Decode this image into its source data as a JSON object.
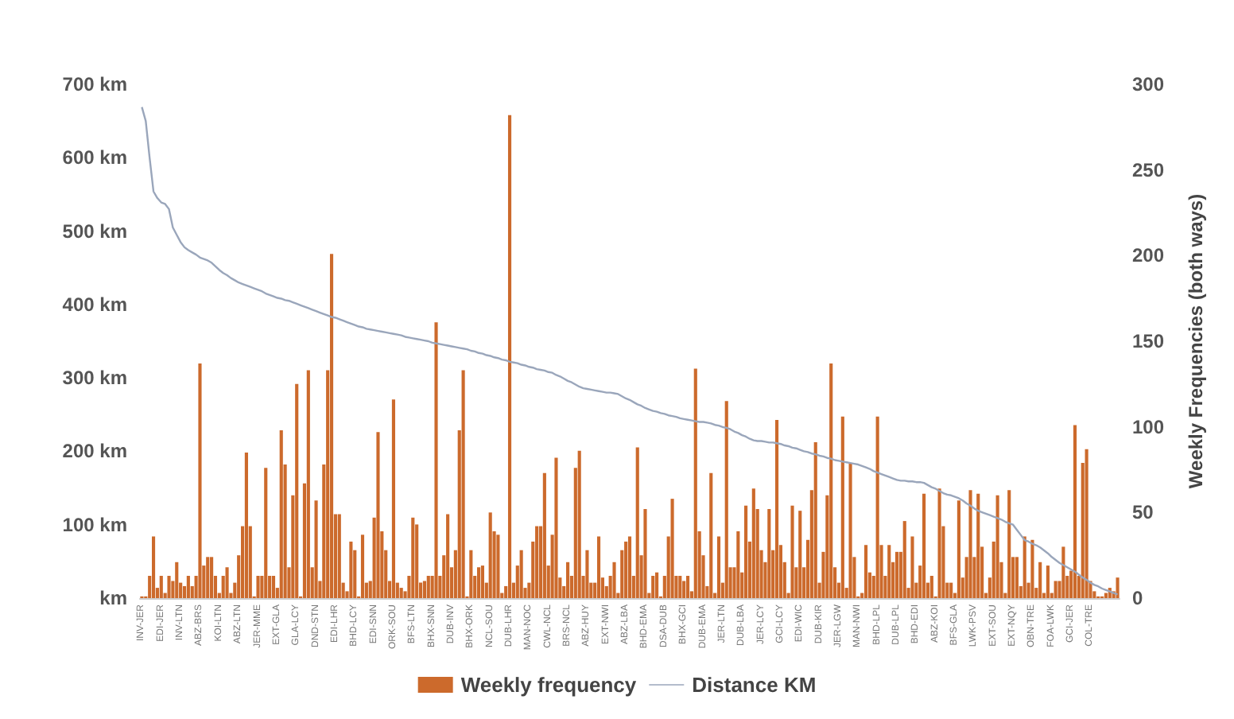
{
  "chart_data": {
    "type": "bar",
    "y2label": "Weekly Frequencies (both ways)",
    "categories": [
      "INV-JER",
      null,
      null,
      null,
      null,
      "EDI-JER",
      null,
      null,
      null,
      null,
      "INV-LTN",
      null,
      null,
      null,
      null,
      "ABZ-BRS",
      null,
      null,
      null,
      null,
      "KOI-LTN",
      null,
      null,
      null,
      null,
      "ABZ-LTN",
      null,
      null,
      null,
      null,
      "JER-MME",
      null,
      null,
      null,
      null,
      "EXT-GLA",
      null,
      null,
      null,
      null,
      "GLA-LCY",
      null,
      null,
      null,
      null,
      "DND-STN",
      null,
      null,
      null,
      null,
      "EDI-LHR",
      null,
      null,
      null,
      null,
      "BHD-LCY",
      null,
      null,
      null,
      null,
      "EDI-SNN",
      null,
      null,
      null,
      null,
      "ORK-SOU",
      null,
      null,
      null,
      null,
      "BFS-LTN",
      null,
      null,
      null,
      null,
      "BHX-SNN",
      null,
      null,
      null,
      null,
      "DUB-INV",
      null,
      null,
      null,
      null,
      "BHX-ORK",
      null,
      null,
      null,
      null,
      "NCL-SOU",
      null,
      null,
      null,
      null,
      "DUB-LHR",
      null,
      null,
      null,
      null,
      "MAN-NOC",
      null,
      null,
      null,
      null,
      "CWL-NCL",
      null,
      null,
      null,
      null,
      "BRS-NCL",
      null,
      null,
      null,
      null,
      "ABZ-HUY",
      null,
      null,
      null,
      null,
      "EXT-NWI",
      null,
      null,
      null,
      null,
      "ABZ-LBA",
      null,
      null,
      null,
      null,
      "BHD-EMA",
      null,
      null,
      null,
      null,
      "DSA-DUB",
      null,
      null,
      null,
      null,
      "BHX-GCI",
      null,
      null,
      null,
      null,
      "DUB-EMA",
      null,
      null,
      null,
      null,
      "JER-LTN",
      null,
      null,
      null,
      null,
      "DUB-LBA",
      null,
      null,
      null,
      null,
      "JER-LCY",
      null,
      null,
      null,
      null,
      "GCI-LCY",
      null,
      null,
      null,
      null,
      "EDI-WIC",
      null,
      null,
      null,
      null,
      "DUB-KIR",
      null,
      null,
      null,
      null,
      "JER-LGW",
      null,
      null,
      null,
      null,
      "MAN-NWI",
      null,
      null,
      null,
      null,
      "BHD-LPL",
      null,
      null,
      null,
      null,
      "DUB-LPL",
      null,
      null,
      null,
      null,
      "BHD-EDI",
      null,
      null,
      null,
      null,
      "ABZ-KOI",
      null,
      null,
      null,
      null,
      "BFS-GLA",
      null,
      null,
      null,
      null,
      "LWK-PSV",
      null,
      null,
      null,
      null,
      "EXT-SOU",
      null,
      null,
      null,
      null,
      "EXT-NQY",
      null,
      null,
      null,
      null,
      "OBN-TRE",
      null,
      null,
      null,
      null,
      "FOA-LWK",
      null,
      null,
      null,
      null,
      "GCI-JER",
      null,
      null,
      null,
      null,
      "COL-TRE",
      null,
      null,
      null,
      null,
      null,
      null,
      null
    ],
    "series": [
      {
        "name": "Weekly frequency",
        "axis": "y2",
        "color": "#cc6a2c",
        "values": [
          1,
          1,
          13,
          36,
          6,
          13,
          3,
          13,
          10,
          21,
          9,
          7,
          13,
          7,
          13,
          137,
          19,
          24,
          24,
          13,
          3,
          13,
          18,
          3,
          9,
          25,
          42,
          85,
          42,
          1,
          13,
          13,
          76,
          13,
          13,
          6,
          98,
          78,
          18,
          60,
          125,
          1,
          67,
          133,
          18,
          57,
          10,
          78,
          133,
          201,
          49,
          49,
          9,
          4,
          33,
          28,
          1,
          37,
          9,
          10,
          47,
          97,
          39,
          28,
          10,
          116,
          9,
          6,
          4,
          13,
          47,
          43,
          9,
          10,
          13,
          13,
          161,
          13,
          25,
          49,
          18,
          28,
          98,
          133,
          1,
          28,
          13,
          18,
          19,
          9,
          50,
          39,
          37,
          3,
          7,
          282,
          9,
          19,
          28,
          6,
          9,
          33,
          42,
          42,
          73,
          19,
          37,
          82,
          12,
          7,
          21,
          13,
          76,
          86,
          13,
          28,
          9,
          9,
          36,
          12,
          7,
          13,
          21,
          3,
          28,
          33,
          36,
          13,
          88,
          25,
          52,
          3,
          13,
          15,
          1,
          13,
          36,
          58,
          13,
          13,
          10,
          13,
          4,
          134,
          39,
          25,
          7,
          73,
          3,
          36,
          9,
          115,
          18,
          18,
          39,
          15,
          54,
          33,
          64,
          52,
          28,
          21,
          52,
          28,
          104,
          31,
          21,
          3,
          54,
          18,
          51,
          18,
          34,
          63,
          91,
          9,
          27,
          60,
          137,
          18,
          9,
          106,
          6,
          79,
          24,
          1,
          3,
          31,
          15,
          13,
          106,
          31,
          13,
          31,
          21,
          27,
          27,
          45,
          6,
          36,
          9,
          19,
          61,
          9,
          13,
          1,
          64,
          42,
          9,
          9,
          3,
          57,
          12,
          24,
          63,
          24,
          61,
          30,
          3,
          12,
          33,
          60,
          21,
          3,
          63,
          24,
          24,
          7,
          36,
          9,
          34,
          6,
          21,
          3,
          19,
          3,
          10,
          10,
          30,
          13,
          16,
          101,
          13,
          79,
          87,
          10,
          4,
          1,
          1,
          3,
          6,
          4,
          12
        ]
      },
      {
        "name": "Distance KM",
        "type": "line",
        "color": "#9aa6bb",
        "values": [
          669,
          650,
          600,
          554,
          545,
          539,
          537,
          530,
          505,
          495,
          485,
          478,
          474,
          471,
          468,
          464,
          462,
          460,
          457,
          452,
          447,
          443,
          440,
          436,
          433,
          430,
          428,
          426,
          424,
          422,
          420,
          418,
          415,
          413,
          411,
          409,
          408,
          406,
          405,
          403,
          401,
          399,
          397,
          395,
          393,
          391,
          389,
          387,
          385,
          383,
          382,
          380,
          378,
          376,
          374,
          372,
          370,
          369,
          367,
          366,
          365,
          364,
          363,
          362,
          361,
          360,
          359,
          358,
          356,
          355,
          354,
          353,
          352,
          351,
          350,
          348,
          347,
          346,
          345,
          344,
          343,
          342,
          341,
          340,
          339,
          337,
          336,
          334,
          333,
          331,
          330,
          328,
          327,
          325,
          324,
          322,
          321,
          320,
          318,
          317,
          315,
          314,
          312,
          311,
          310,
          308,
          307,
          304,
          302,
          299,
          296,
          294,
          291,
          288,
          286,
          285,
          284,
          283,
          282,
          281,
          280,
          280,
          279,
          278,
          275,
          272,
          270,
          267,
          264,
          262,
          259,
          257,
          255,
          254,
          252,
          251,
          249,
          248,
          247,
          245,
          244,
          243,
          242,
          241,
          240,
          240,
          239,
          238,
          236,
          235,
          233,
          232,
          230,
          227,
          225,
          222,
          220,
          217,
          215,
          214,
          214,
          213,
          212,
          212,
          211,
          210,
          208,
          207,
          205,
          204,
          202,
          200,
          199,
          197,
          196,
          194,
          193,
          191,
          190,
          188,
          187,
          186,
          185,
          184,
          183,
          182,
          180,
          178,
          176,
          173,
          171,
          169,
          167,
          165,
          163,
          161,
          160,
          160,
          159,
          159,
          158,
          158,
          157,
          154,
          151,
          149,
          146,
          143,
          141,
          140,
          138,
          136,
          133,
          129,
          126,
          122,
          119,
          117,
          115,
          113,
          111,
          109,
          107,
          104,
          102,
          100,
          93,
          86,
          79,
          77,
          74,
          72,
          69,
          65,
          61,
          56,
          52,
          48,
          45,
          42,
          39,
          36,
          32,
          28,
          25,
          21,
          18,
          16,
          13,
          11,
          9,
          7,
          5
        ]
      }
    ],
    "ylim": [
      0,
      700
    ],
    "yticks": [
      {
        "value": 0,
        "label": "km"
      },
      {
        "value": 100,
        "label": "100 km"
      },
      {
        "value": 200,
        "label": "200 km"
      },
      {
        "value": 300,
        "label": "300 km"
      },
      {
        "value": 400,
        "label": "400 km"
      },
      {
        "value": 500,
        "label": "500 km"
      },
      {
        "value": 600,
        "label": "600 km"
      },
      {
        "value": 700,
        "label": "700 km"
      }
    ],
    "y2lim": [
      0,
      300
    ],
    "y2ticks": [
      0,
      50,
      100,
      150,
      200,
      250,
      300
    ],
    "legend": "bottom"
  }
}
